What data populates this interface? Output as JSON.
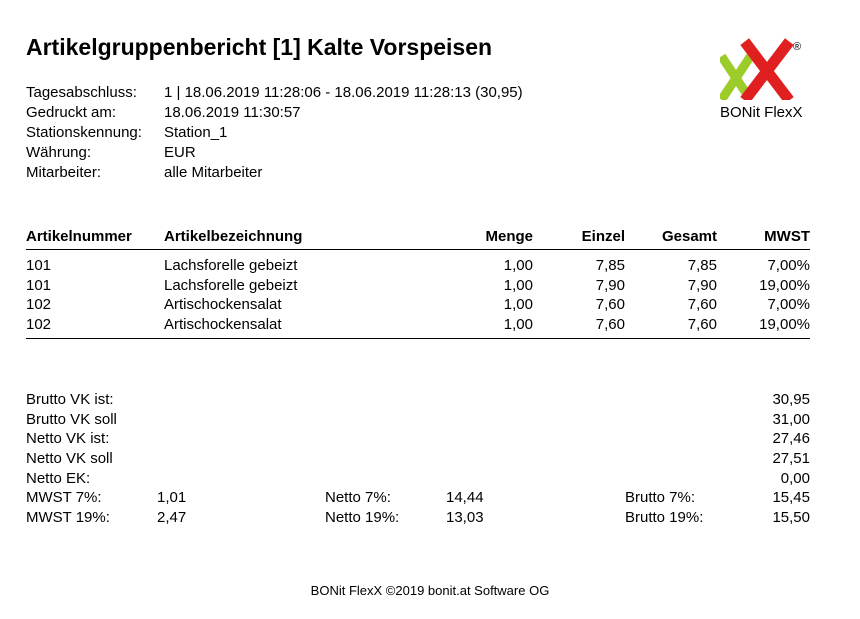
{
  "title": "Artikelgruppenbericht [1] Kalte Vorspeisen",
  "meta": [
    {
      "label": "Tagesabschluss:",
      "value": "1 | 18.06.2019 11:28:06 - 18.06.2019 11:28:13 (30,95)"
    },
    {
      "label": "Gedruckt am:",
      "value": "18.06.2019  11:30:57"
    },
    {
      "label": "Stationskennung:",
      "value": "Station_1"
    },
    {
      "label": "Währung:",
      "value": "EUR"
    },
    {
      "label": "Mitarbeiter:",
      "value": "alle Mitarbeiter"
    }
  ],
  "logo": {
    "mark": "xX",
    "registered": "®",
    "name": "BONit FlexX",
    "colors": {
      "x_small": "#9ccc2a",
      "x_big": "#e02020"
    }
  },
  "table": {
    "headers": [
      "Artikelnummer",
      "Artikelbezeichnung",
      "Menge",
      "Einzel",
      "Gesamt",
      "MWST"
    ],
    "rows": [
      [
        "101",
        "Lachsforelle  gebeizt",
        "1,00",
        "7,85",
        "7,85",
        "7,00%"
      ],
      [
        "101",
        "Lachsforelle  gebeizt",
        "1,00",
        "7,90",
        "7,90",
        "19,00%"
      ],
      [
        "102",
        "Artischockensalat",
        "1,00",
        "7,60",
        "7,60",
        "7,00%"
      ],
      [
        "102",
        "Artischockensalat",
        "1,00",
        "7,60",
        "7,60",
        "19,00%"
      ]
    ]
  },
  "summary": [
    {
      "label": "Brutto VK ist:",
      "value": "30,95"
    },
    {
      "label": "Brutto VK soll",
      "value": "31,00"
    },
    {
      "label": "Netto VK ist:",
      "value": "27,46"
    },
    {
      "label": "Netto VK soll",
      "value": "27,51"
    },
    {
      "label": "Netto EK:",
      "value": "0,00"
    }
  ],
  "tax": [
    {
      "mwst_label": "MWST 7%:",
      "mwst_value": "1,01",
      "netto_label": "Netto 7%:",
      "netto_value": "14,44",
      "brutto_label": "Brutto 7%:",
      "brutto_value": "15,45"
    },
    {
      "mwst_label": "MWST 19%:",
      "mwst_value": "2,47",
      "netto_label": "Netto 19%:",
      "netto_value": "13,03",
      "brutto_label": "Brutto 19%:",
      "brutto_value": "15,50"
    }
  ],
  "footer": "BONit FlexX ©2019 bonit.at Software OG"
}
